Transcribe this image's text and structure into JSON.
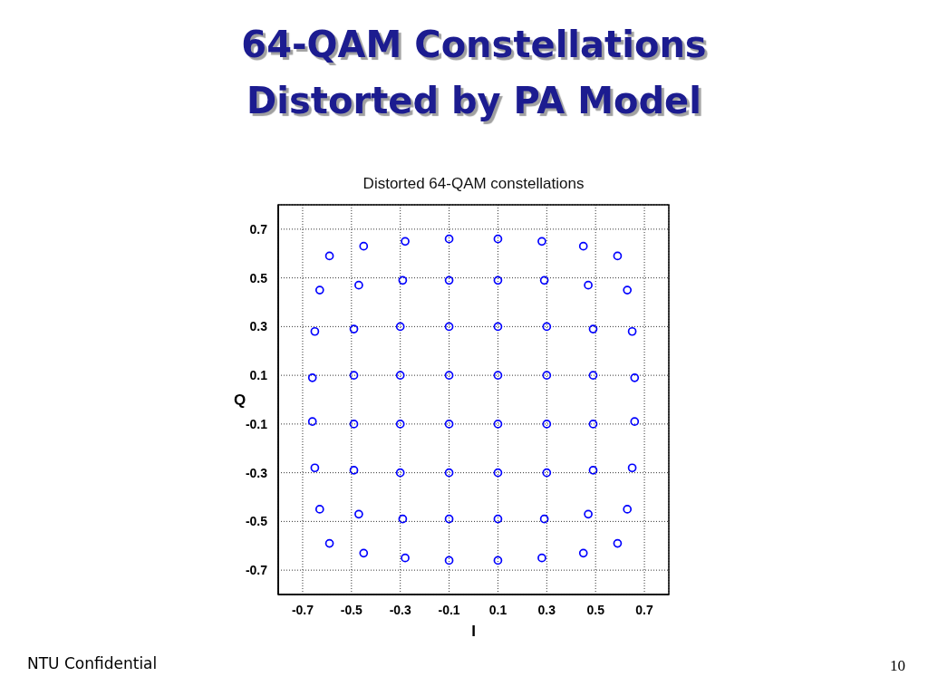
{
  "chart_data": {
    "type": "scatter",
    "title": "64-QAM Constellations Distorted by PA Model",
    "subtitle": "Distorted 64-QAM constellations",
    "xlabel": "I",
    "ylabel": "Q",
    "x": [
      -0.59,
      -0.45,
      -0.28,
      -0.1,
      0.1,
      0.28,
      0.45,
      0.59,
      -0.63,
      -0.47,
      -0.29,
      -0.1,
      0.1,
      0.29,
      0.47,
      0.63,
      -0.65,
      -0.49,
      -0.3,
      -0.1,
      0.1,
      0.3,
      0.49,
      0.65,
      -0.66,
      -0.49,
      -0.3,
      -0.1,
      0.1,
      0.3,
      0.49,
      0.66,
      -0.66,
      -0.49,
      -0.3,
      -0.1,
      0.1,
      0.3,
      0.49,
      0.66,
      -0.65,
      -0.49,
      -0.3,
      -0.1,
      0.1,
      0.3,
      0.49,
      0.65,
      -0.63,
      -0.47,
      -0.29,
      -0.1,
      0.1,
      0.29,
      0.47,
      0.63,
      -0.59,
      -0.45,
      -0.28,
      -0.1,
      0.1,
      0.28,
      0.45,
      0.59
    ],
    "values": [
      0.59,
      0.63,
      0.65,
      0.66,
      0.66,
      0.65,
      0.63,
      0.59,
      0.45,
      0.47,
      0.49,
      0.49,
      0.49,
      0.49,
      0.47,
      0.45,
      0.28,
      0.29,
      0.3,
      0.3,
      0.3,
      0.3,
      0.29,
      0.28,
      0.09,
      0.1,
      0.1,
      0.1,
      0.1,
      0.1,
      0.1,
      0.09,
      -0.09,
      -0.1,
      -0.1,
      -0.1,
      -0.1,
      -0.1,
      -0.1,
      -0.09,
      -0.28,
      -0.29,
      -0.3,
      -0.3,
      -0.3,
      -0.3,
      -0.29,
      -0.28,
      -0.45,
      -0.47,
      -0.49,
      -0.49,
      -0.49,
      -0.49,
      -0.47,
      -0.45,
      -0.59,
      -0.63,
      -0.65,
      -0.66,
      -0.66,
      -0.65,
      -0.63,
      -0.59
    ],
    "color": "#0000ff",
    "marker": "circle",
    "xlim": [
      -0.8,
      0.8
    ],
    "ylim": [
      -0.8,
      0.8
    ],
    "xticks": [
      -0.7,
      -0.5,
      -0.3,
      -0.1,
      0.1,
      0.3,
      0.5,
      0.7
    ],
    "yticks": [
      -0.7,
      -0.5,
      -0.3,
      -0.1,
      0.1,
      0.3,
      0.5,
      0.7
    ],
    "grid": true,
    "annotations": [
      "NTU Confidential",
      "10"
    ]
  }
}
